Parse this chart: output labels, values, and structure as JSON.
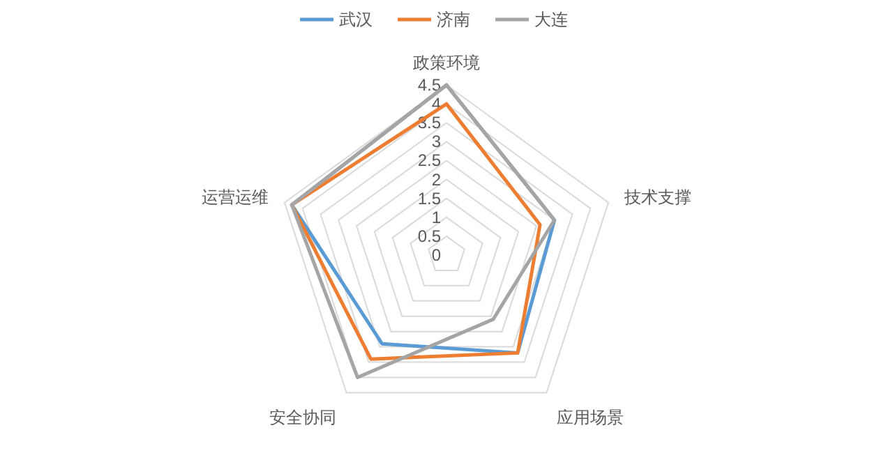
{
  "chart_data": {
    "type": "radar",
    "categories": [
      "政策环境",
      "技术支撑",
      "应用场景",
      "安全协同",
      "运营运维"
    ],
    "series": [
      {
        "name": "武汉",
        "color": "#5b9bd5",
        "values": [
          4.5,
          3,
          3.2,
          2.9,
          4.3
        ]
      },
      {
        "name": "济南",
        "color": "#ed7d31",
        "values": [
          4,
          2.6,
          3.2,
          3.4,
          4.3
        ]
      },
      {
        "name": "大连",
        "color": "#a5a5a5",
        "values": [
          4.5,
          3,
          2.1,
          4,
          4.3
        ]
      }
    ],
    "ylim": [
      0,
      4.5
    ],
    "yticks": [
      0,
      0.5,
      1,
      1.5,
      2,
      2.5,
      3,
      3.5,
      4,
      4.5
    ],
    "grid": true,
    "legend": "top"
  }
}
